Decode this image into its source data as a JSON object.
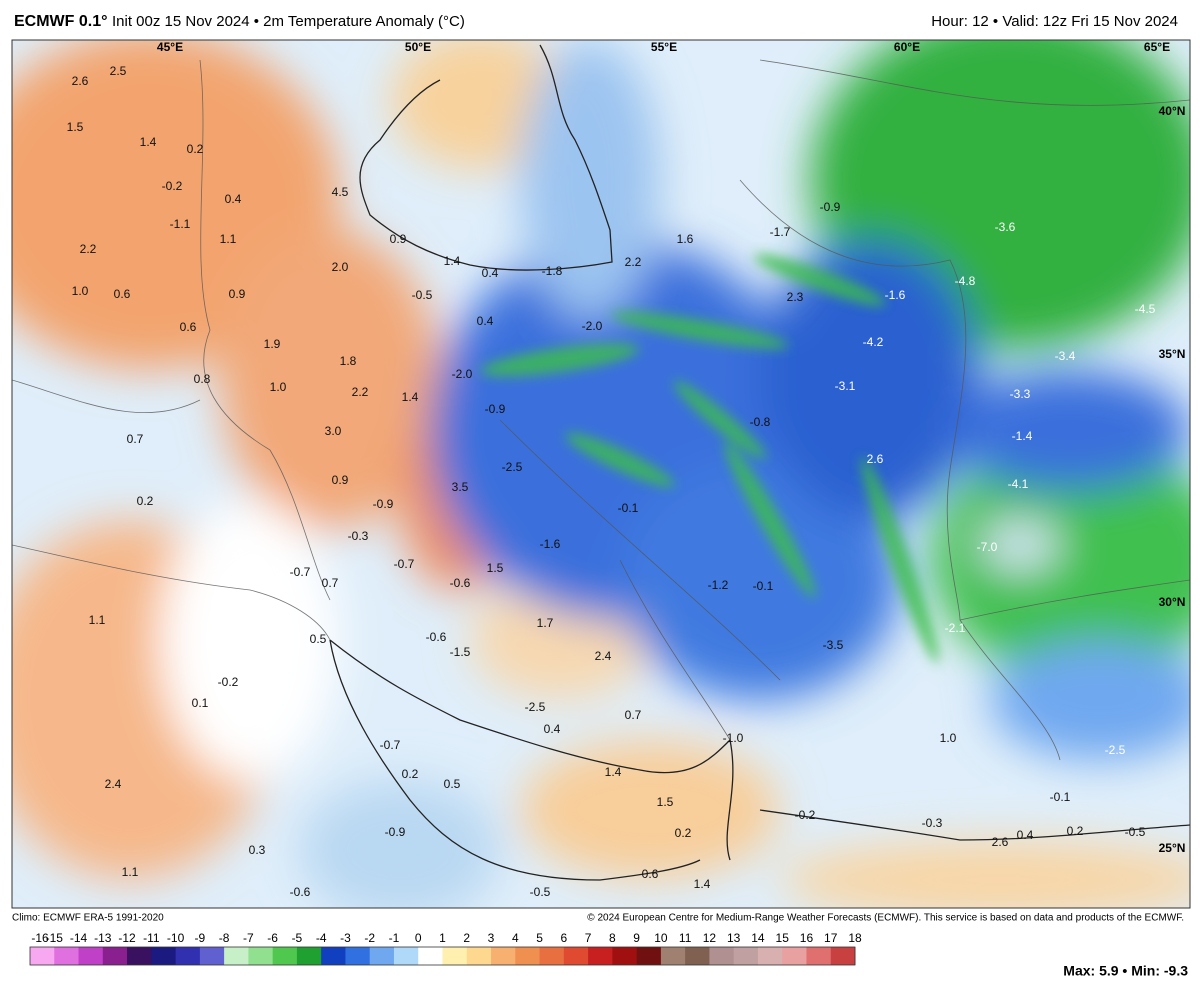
{
  "header": {
    "model": "ECMWF 0.1°",
    "subtitle": "Init 00z 15 Nov 2024 • 2m Temperature Anomaly (°C)",
    "valid": "Hour: 12 • Valid: 12z Fri 15 Nov 2024"
  },
  "lon_labels": [
    "45°E",
    "50°E",
    "55°E",
    "60°E",
    "65°E"
  ],
  "lat_labels": [
    "40°N",
    "35°N",
    "30°N",
    "25°N"
  ],
  "labels": [
    "2.6",
    "2.5",
    "1.5",
    "1.4",
    "0.2",
    "-0.2",
    "0.4",
    "4.5",
    "-1.1",
    "1.1",
    "2.2",
    "1.0",
    "0.6",
    "0.9",
    "2.0",
    "0.9",
    "1.4",
    "0.4",
    "-1.8",
    "2.2",
    "1.6",
    "-1.7",
    "-0.9",
    "-0.5",
    "0.4",
    "-2.0",
    "2.3",
    "-1.6",
    "-4.8",
    "-3.6",
    "-4.5",
    "-4.2",
    "-3.4",
    "0.6",
    "1.9",
    "1.8",
    "-2.0",
    "2.2",
    "1.4",
    "-0.9",
    "-3.1",
    "-3.3",
    "-0.8",
    "-1.4",
    "2.6",
    "-4.1",
    "1.0",
    "0.8",
    "0.7",
    "3.0",
    "-2.5",
    "0.9",
    "3.5",
    "-0.9",
    "-0.1",
    "0.2",
    "-0.3",
    "-1.6",
    "-7.0",
    "-0.7",
    "0.7",
    "-0.7",
    "-0.6",
    "1.5",
    "-1.2",
    "-0.1",
    "1.1",
    "1.7",
    "-0.6",
    "-1.5",
    "-3.5",
    "-2.1",
    "2.4",
    "-0.2",
    "0.1",
    "0.5",
    "-2.5",
    "0.4",
    "0.7",
    "-1.0",
    "1.0",
    "-2.5",
    "-0.7",
    "0.2",
    "1.4",
    "0.5",
    "2.4",
    "1.5",
    "-0.2",
    "-0.1",
    "-0.9",
    "0.2",
    "-0.3",
    "2.6",
    "0.4",
    "0.2",
    "-0.5",
    "0.3",
    "1.1",
    "0.6",
    "-0.6",
    "1.4",
    "-0.5"
  ],
  "footer": {
    "climo": "Climo: ECMWF ERA-5 1991-2020",
    "copyright": "© 2024 European Centre for Medium-Range Weather Forecasts (ECMWF). This service is based on data and products of the ECMWF.",
    "maxmin": "Max: 5.9 • Min: -9.3"
  },
  "colorbar": {
    "ticks": [
      -16,
      -15,
      -14,
      -13,
      -12,
      -11,
      -10,
      -9,
      -8,
      -7,
      -6,
      -5,
      -4,
      -3,
      -2,
      -1,
      0,
      1,
      2,
      3,
      4,
      5,
      6,
      7,
      8,
      9,
      10,
      11,
      12,
      13,
      14,
      15,
      16,
      17,
      18
    ],
    "colors": [
      "#f7a8f0",
      "#e070e0",
      "#c040c8",
      "#8a2090",
      "#3a1060",
      "#1a1a80",
      "#3030b0",
      "#6060d0",
      "#c8f0c8",
      "#90e090",
      "#50c850",
      "#20a030",
      "#1040c0",
      "#3070e0",
      "#70a8f0",
      "#b0d8f8",
      "#ffffff",
      "#fff0b0",
      "#ffd890",
      "#f8b070",
      "#f09050",
      "#e87040",
      "#e04a30",
      "#c82020",
      "#a01010",
      "#701010",
      "#a08070",
      "#806050",
      "#b09090",
      "#c0a0a0",
      "#d8b0b0",
      "#e8a0a0",
      "#e07070",
      "#c84040"
    ]
  }
}
